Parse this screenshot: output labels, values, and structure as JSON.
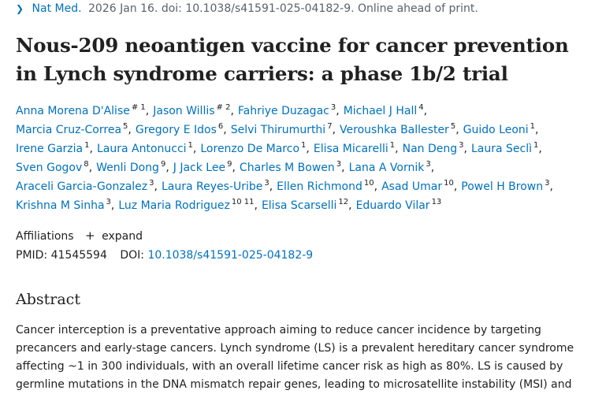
{
  "citation": {
    "chevron": "chevron-right-icon",
    "journal": "Nat Med.",
    "details": "2026 Jan 16. doi: 10.1038/s41591-025-04182-9. Online ahead of print."
  },
  "title": "Nous-209 neoantigen vaccine for cancer prevention in Lynch syndrome carriers: a phase 1b/2 trial",
  "authors_rows": [
    [
      {
        "name": "Anna Morena D'Alise",
        "sup": "# 1"
      },
      {
        "name": "Jason Willis",
        "sup": "# 2"
      },
      {
        "name": "Fahriye Duzagac",
        "sup": "3"
      },
      {
        "name": "Michael J Hall",
        "sup": "4"
      }
    ],
    [
      {
        "name": "Marcia Cruz-Correa",
        "sup": "5"
      },
      {
        "name": "Gregory E Idos",
        "sup": "6"
      },
      {
        "name": "Selvi Thirumurthi",
        "sup": "7"
      },
      {
        "name": "Veroushka Ballester",
        "sup": "5"
      },
      {
        "name": "Guido Leoni",
        "sup": "1"
      }
    ],
    [
      {
        "name": "Irene Garzia",
        "sup": "1"
      },
      {
        "name": "Laura Antonucci",
        "sup": "1"
      },
      {
        "name": "Lorenzo De Marco",
        "sup": "1"
      },
      {
        "name": "Elisa Micarelli",
        "sup": "1"
      },
      {
        "name": "Nan Deng",
        "sup": "3"
      },
      {
        "name": "Laura Seclì",
        "sup": "1"
      }
    ],
    [
      {
        "name": "Sven Gogov",
        "sup": "8"
      },
      {
        "name": "Wenli Dong",
        "sup": "9"
      },
      {
        "name": "J Jack Lee",
        "sup": "9"
      },
      {
        "name": "Charles M Bowen",
        "sup": "3"
      },
      {
        "name": "Lana A Vornik",
        "sup": "3"
      }
    ],
    [
      {
        "name": "Araceli Garcia-Gonzalez",
        "sup": "3"
      },
      {
        "name": "Laura Reyes-Uribe",
        "sup": "3"
      },
      {
        "name": "Ellen Richmond",
        "sup": "10"
      },
      {
        "name": "Asad Umar",
        "sup": "10"
      },
      {
        "name": "Powel H Brown",
        "sup": "3"
      }
    ],
    [
      {
        "name": "Krishna M Sinha",
        "sup": "3"
      },
      {
        "name": "Luz Maria Rodriguez",
        "sup": "10 11"
      },
      {
        "name": "Elisa Scarselli",
        "sup": "12"
      },
      {
        "name": "Eduardo Vilar",
        "sup": "13"
      }
    ]
  ],
  "affiliations": {
    "label": "Affiliations",
    "expand_icon": "plus-icon",
    "expand_label": "expand"
  },
  "ids": {
    "pmid_label": "PMID:",
    "pmid": "41545594",
    "doi_label": "DOI:",
    "doi": "10.1038/s41591-025-04182-9"
  },
  "abstract": {
    "heading": "Abstract",
    "text": "Cancer interception is a preventative approach aiming to reduce cancer incidence by targeting precancers and early-stage cancers. Lynch syndrome (LS) is a prevalent hereditary cancer syndrome affecting ~1 in 300 individuals, with an overall lifetime cancer risk as high as 80%. LS is caused by germline mutations in the DNA mismatch repair genes, leading to microsatellite instability (MSI) and"
  }
}
